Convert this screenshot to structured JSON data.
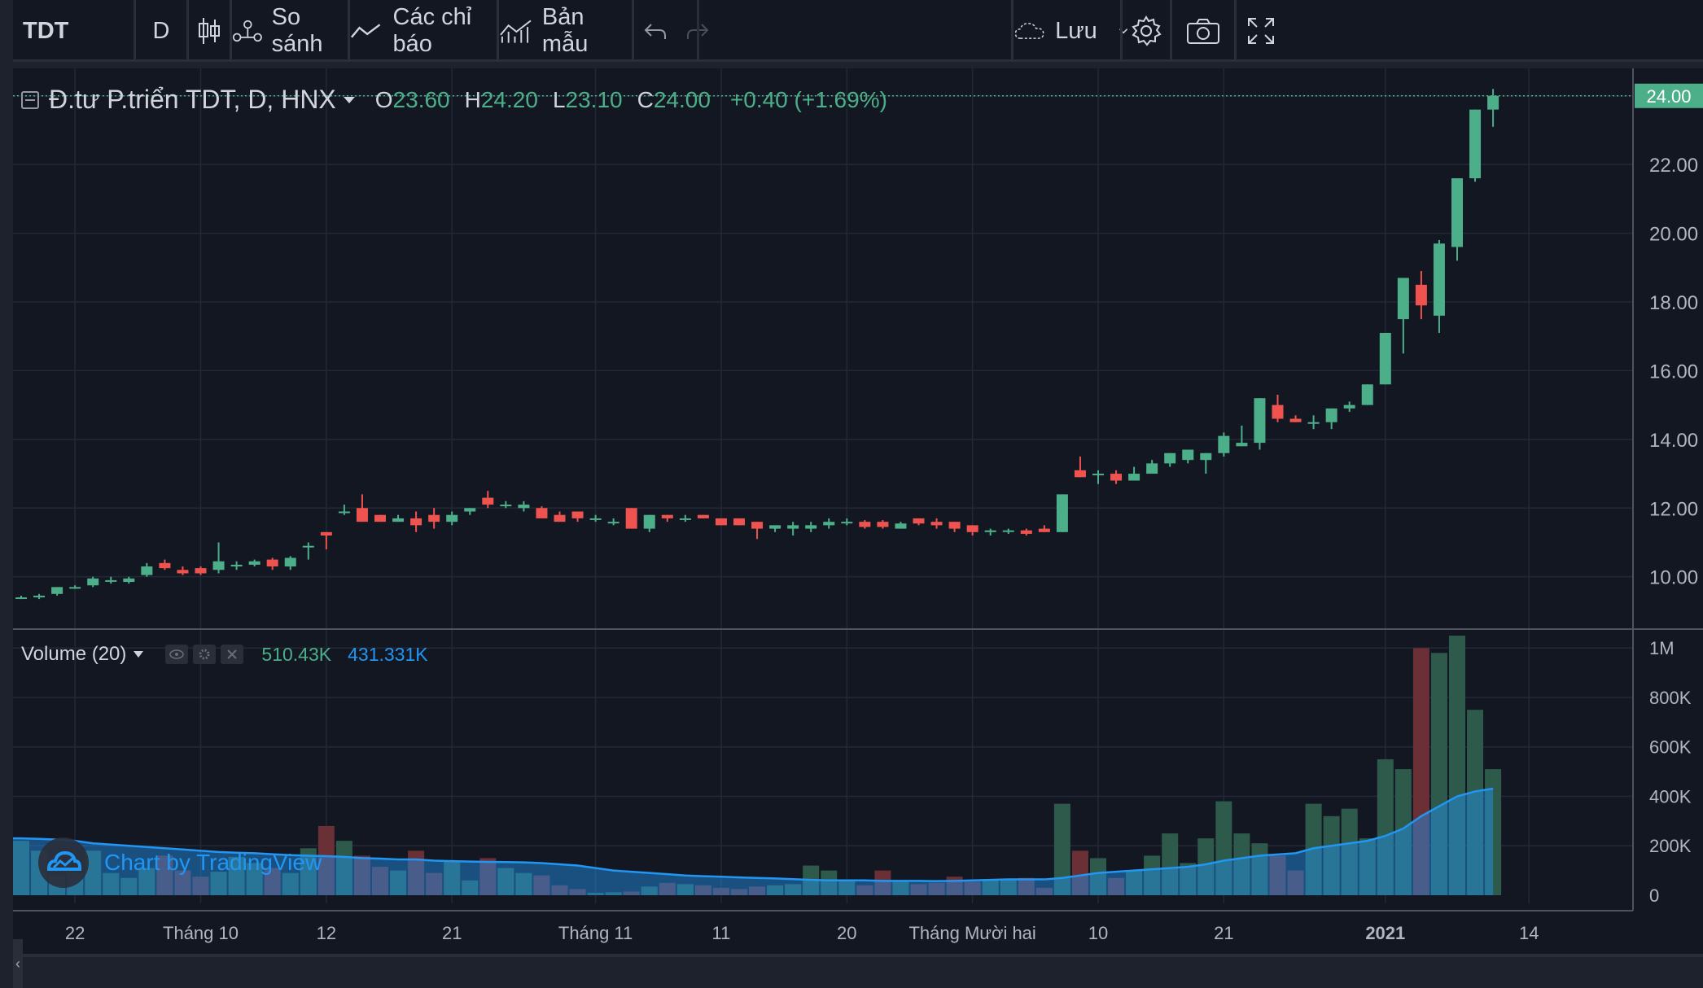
{
  "toolbar": {
    "symbol": "TDT",
    "interval": "D",
    "compare_label": "So sánh",
    "indicators_label": "Các chỉ báo",
    "templates_label": "Bản mẫu",
    "save_label": "Lưu"
  },
  "legend": {
    "title": "Đ.tư P.triển TDT, D, HNX",
    "o_label": "O",
    "o_value": "23.60",
    "h_label": "H",
    "h_value": "24.20",
    "l_label": "L",
    "l_value": "23.10",
    "c_label": "C",
    "c_value": "24.00",
    "change": "+0.40 (+1.69%)"
  },
  "volume_legend": {
    "title": "Volume (20)",
    "volume_value": "510.43K",
    "ma_value": "431.331K"
  },
  "watermark": "Chart by TradingView",
  "colors": {
    "up": "#4caf8a",
    "down": "#ef5350",
    "volume_up": "#2e5a4c",
    "volume_down": "#6b2f36",
    "ma": "#2196f3",
    "background": "#131722",
    "grid": "#232836"
  },
  "chart_data": {
    "type": "candlestick",
    "price_axis": {
      "ticks": [
        "10.00",
        "12.00",
        "14.00",
        "16.00",
        "18.00",
        "20.00",
        "22.00",
        "24.00"
      ],
      "last_price": "24.00",
      "ylim": [
        8.5,
        24.8
      ]
    },
    "volume_axis": {
      "ticks": [
        "0",
        "200K",
        "400K",
        "600K",
        "800K",
        "1M"
      ],
      "ylim": [
        0,
        1050000
      ]
    },
    "x_ticks": [
      {
        "label": "22",
        "index": 3
      },
      {
        "label": "Tháng 10",
        "index": 10
      },
      {
        "label": "12",
        "index": 17
      },
      {
        "label": "21",
        "index": 24
      },
      {
        "label": "Tháng 11",
        "index": 32
      },
      {
        "label": "11",
        "index": 39
      },
      {
        "label": "20",
        "index": 46
      },
      {
        "label": "Tháng Mười hai",
        "index": 53
      },
      {
        "label": "10",
        "index": 60
      },
      {
        "label": "21",
        "index": 67
      },
      {
        "label": "2021",
        "index": 76,
        "bold": true
      },
      {
        "label": "14",
        "index": 84
      }
    ],
    "ohlc": [
      [
        9.4,
        9.45,
        9.35,
        9.4
      ],
      [
        9.4,
        9.5,
        9.35,
        9.45
      ],
      [
        9.5,
        9.7,
        9.45,
        9.7
      ],
      [
        9.7,
        9.75,
        9.65,
        9.7
      ],
      [
        9.75,
        10.0,
        9.7,
        9.95
      ],
      [
        9.9,
        10.0,
        9.8,
        9.9
      ],
      [
        9.85,
        10.0,
        9.8,
        9.95
      ],
      [
        10.05,
        10.4,
        10.0,
        10.3
      ],
      [
        10.4,
        10.5,
        10.2,
        10.25
      ],
      [
        10.2,
        10.3,
        10.05,
        10.1
      ],
      [
        10.25,
        10.3,
        10.05,
        10.1
      ],
      [
        10.2,
        11.0,
        10.1,
        10.45
      ],
      [
        10.3,
        10.45,
        10.2,
        10.35
      ],
      [
        10.35,
        10.5,
        10.3,
        10.45
      ],
      [
        10.5,
        10.55,
        10.2,
        10.3
      ],
      [
        10.3,
        10.6,
        10.2,
        10.55
      ],
      [
        10.9,
        11.0,
        10.5,
        10.9
      ],
      [
        11.3,
        11.3,
        10.8,
        11.2
      ],
      [
        11.9,
        12.1,
        11.8,
        11.9
      ],
      [
        12.0,
        12.4,
        11.6,
        11.6
      ],
      [
        11.8,
        11.8,
        11.6,
        11.6
      ],
      [
        11.6,
        11.8,
        11.6,
        11.7
      ],
      [
        11.7,
        11.9,
        11.3,
        11.5
      ],
      [
        11.8,
        12.0,
        11.4,
        11.6
      ],
      [
        11.6,
        11.9,
        11.5,
        11.8
      ],
      [
        11.9,
        12.0,
        11.8,
        12.0
      ],
      [
        12.3,
        12.5,
        12.0,
        12.1
      ],
      [
        12.1,
        12.2,
        12.0,
        12.1
      ],
      [
        12.0,
        12.2,
        11.9,
        12.1
      ],
      [
        12.0,
        12.05,
        11.7,
        11.7
      ],
      [
        11.8,
        11.9,
        11.6,
        11.6
      ],
      [
        11.9,
        11.9,
        11.6,
        11.7
      ],
      [
        11.7,
        11.8,
        11.6,
        11.7
      ],
      [
        11.6,
        11.7,
        11.5,
        11.6
      ],
      [
        12.0,
        12.0,
        11.4,
        11.4
      ],
      [
        11.4,
        11.8,
        11.3,
        11.8
      ],
      [
        11.8,
        11.8,
        11.6,
        11.7
      ],
      [
        11.7,
        11.8,
        11.6,
        11.7
      ],
      [
        11.8,
        11.8,
        11.7,
        11.7
      ],
      [
        11.7,
        11.7,
        11.5,
        11.5
      ],
      [
        11.7,
        11.7,
        11.5,
        11.5
      ],
      [
        11.6,
        11.6,
        11.1,
        11.4
      ],
      [
        11.4,
        11.5,
        11.3,
        11.5
      ],
      [
        11.4,
        11.6,
        11.2,
        11.5
      ],
      [
        11.4,
        11.6,
        11.3,
        11.5
      ],
      [
        11.5,
        11.7,
        11.4,
        11.6
      ],
      [
        11.6,
        11.7,
        11.5,
        11.6
      ],
      [
        11.6,
        11.65,
        11.4,
        11.45
      ],
      [
        11.6,
        11.65,
        11.4,
        11.45
      ],
      [
        11.4,
        11.6,
        11.4,
        11.55
      ],
      [
        11.7,
        11.7,
        11.5,
        11.55
      ],
      [
        11.6,
        11.7,
        11.4,
        11.5
      ],
      [
        11.6,
        11.6,
        11.3,
        11.4
      ],
      [
        11.5,
        11.5,
        11.2,
        11.3
      ],
      [
        11.3,
        11.4,
        11.2,
        11.35
      ],
      [
        11.35,
        11.4,
        11.25,
        11.35
      ],
      [
        11.35,
        11.4,
        11.2,
        11.25
      ],
      [
        11.4,
        11.5,
        11.3,
        11.3
      ],
      [
        11.3,
        12.4,
        11.3,
        12.4
      ],
      [
        13.1,
        13.5,
        12.9,
        12.9
      ],
      [
        13.0,
        13.1,
        12.7,
        13.0
      ],
      [
        13.0,
        13.1,
        12.7,
        12.8
      ],
      [
        12.8,
        13.2,
        12.8,
        13.0
      ],
      [
        13.0,
        13.4,
        13.0,
        13.3
      ],
      [
        13.3,
        13.6,
        13.2,
        13.6
      ],
      [
        13.4,
        13.7,
        13.3,
        13.7
      ],
      [
        13.4,
        13.6,
        13.0,
        13.6
      ],
      [
        13.6,
        14.2,
        13.5,
        14.1
      ],
      [
        13.8,
        14.4,
        13.8,
        13.9
      ],
      [
        13.9,
        15.2,
        13.7,
        15.2
      ],
      [
        15.0,
        15.3,
        14.5,
        14.6
      ],
      [
        14.6,
        14.7,
        14.5,
        14.5
      ],
      [
        14.5,
        14.7,
        14.3,
        14.5
      ],
      [
        14.5,
        14.9,
        14.3,
        14.9
      ],
      [
        14.9,
        15.1,
        14.8,
        15.0
      ],
      [
        15.0,
        15.6,
        15.0,
        15.6
      ],
      [
        15.6,
        17.1,
        15.6,
        17.1
      ],
      [
        17.5,
        18.7,
        16.5,
        18.7
      ],
      [
        18.5,
        18.9,
        17.5,
        17.9
      ],
      [
        17.6,
        19.8,
        17.1,
        19.7
      ],
      [
        19.6,
        21.6,
        19.2,
        21.6
      ],
      [
        21.6,
        23.6,
        21.5,
        23.6
      ],
      [
        23.6,
        24.2,
        23.1,
        24.0
      ]
    ],
    "volume": [
      220000,
      180000,
      80000,
      90000,
      180000,
      90000,
      70000,
      110000,
      160000,
      100000,
      75000,
      95000,
      155000,
      130000,
      110000,
      90000,
      190000,
      280000,
      220000,
      160000,
      115000,
      100000,
      180000,
      90000,
      140000,
      60000,
      150000,
      110000,
      90000,
      80000,
      40000,
      25000,
      10000,
      12000,
      15000,
      35000,
      50000,
      45000,
      40000,
      30000,
      25000,
      35000,
      40000,
      45000,
      120000,
      100000,
      60000,
      40000,
      100000,
      55000,
      45000,
      50000,
      75000,
      55000,
      65000,
      65000,
      70000,
      30000,
      370000,
      180000,
      150000,
      70000,
      100000,
      160000,
      250000,
      130000,
      230000,
      380000,
      250000,
      210000,
      160000,
      100000,
      370000,
      320000,
      350000,
      230000,
      550000,
      510000,
      1000000,
      980000,
      1050000,
      750000,
      510000
    ],
    "volume_ma": [
      230000,
      228000,
      225000,
      220000,
      210000,
      205000,
      200000,
      195000,
      190000,
      185000,
      180000,
      175000,
      172000,
      170000,
      166000,
      162000,
      160000,
      158000,
      155000,
      150000,
      148000,
      145000,
      145000,
      140000,
      138000,
      136000,
      135000,
      134000,
      133000,
      130000,
      125000,
      120000,
      110000,
      100000,
      95000,
      90000,
      85000,
      80000,
      77000,
      75000,
      72000,
      70000,
      68000,
      65000,
      62000,
      60000,
      60000,
      60000,
      58000,
      58000,
      58000,
      57000,
      58000,
      60000,
      62000,
      64000,
      64000,
      64000,
      70000,
      80000,
      90000,
      95000,
      100000,
      105000,
      110000,
      115000,
      125000,
      140000,
      150000,
      160000,
      165000,
      170000,
      190000,
      200000,
      210000,
      220000,
      240000,
      270000,
      320000,
      360000,
      400000,
      420000,
      431331
    ],
    "last_candle": {
      "open": 23.6,
      "high": 24.2,
      "low": 23.1,
      "close": 24.0
    }
  }
}
